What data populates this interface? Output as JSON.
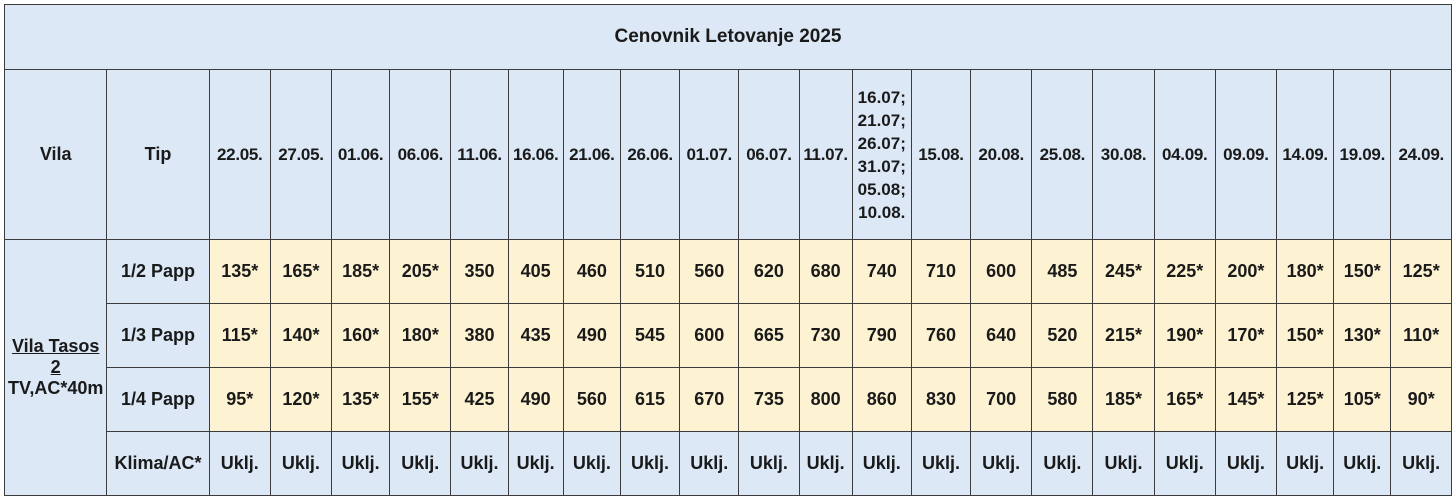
{
  "title": "Cenovnik Letovanje 2025",
  "headers": {
    "villa": "Vila",
    "type": "Tip"
  },
  "dates": [
    "22.05.",
    "27.05.",
    "01.06.",
    "06.06.",
    "11.06.",
    "16.06.",
    "21.06.",
    "26.06.",
    "01.07.",
    "06.07.",
    "11.07."
  ],
  "multi_date": [
    "16.07;",
    "21.07;",
    "26.07;",
    "31.07;",
    "05.08;",
    "10.08."
  ],
  "dates_after": [
    "15.08.",
    "20.08.",
    "25.08.",
    "30.08.",
    "04.09.",
    "09.09.",
    "14.09.",
    "19.09.",
    "24.09."
  ],
  "villa": {
    "name_line1": "Vila Tasos",
    "name_line2": "2",
    "info": "TV,AC*40m"
  },
  "rows": [
    {
      "type": "1/2 Papp",
      "values": [
        "135*",
        "165*",
        "185*",
        "205*",
        "350",
        "405",
        "460",
        "510",
        "560",
        "620",
        "680",
        "740",
        "710",
        "600",
        "485",
        "245*",
        "225*",
        "200*",
        "180*",
        "150*",
        "125*"
      ]
    },
    {
      "type": "1/3 Papp",
      "values": [
        "115*",
        "140*",
        "160*",
        "180*",
        "380",
        "435",
        "490",
        "545",
        "600",
        "665",
        "730",
        "790",
        "760",
        "640",
        "520",
        "215*",
        "190*",
        "170*",
        "150*",
        "130*",
        "110*"
      ]
    },
    {
      "type": "1/4 Papp",
      "values": [
        "95*",
        "120*",
        "135*",
        "155*",
        "425",
        "490",
        "560",
        "615",
        "670",
        "735",
        "800",
        "860",
        "830",
        "700",
        "580",
        "185*",
        "165*",
        "145*",
        "125*",
        "105*",
        "90*"
      ]
    }
  ],
  "ac_row": {
    "type": "Klima/AC*",
    "values": [
      "Uklj.",
      "Uklj.",
      "Uklj.",
      "Uklj.",
      "Uklj.",
      "Uklj.",
      "Uklj.",
      "Uklj.",
      "Uklj.",
      "Uklj.",
      "Uklj.",
      "Uklj.",
      "Uklj.",
      "Uklj.",
      "Uklj.",
      "Uklj.",
      "Uklj.",
      "Uklj.",
      "Uklj.",
      "Uklj.",
      "Uklj."
    ]
  },
  "colors": {
    "header_bg": "#dce8f5",
    "price_bg": "#fdf3d3",
    "border": "#3c3c3c"
  }
}
